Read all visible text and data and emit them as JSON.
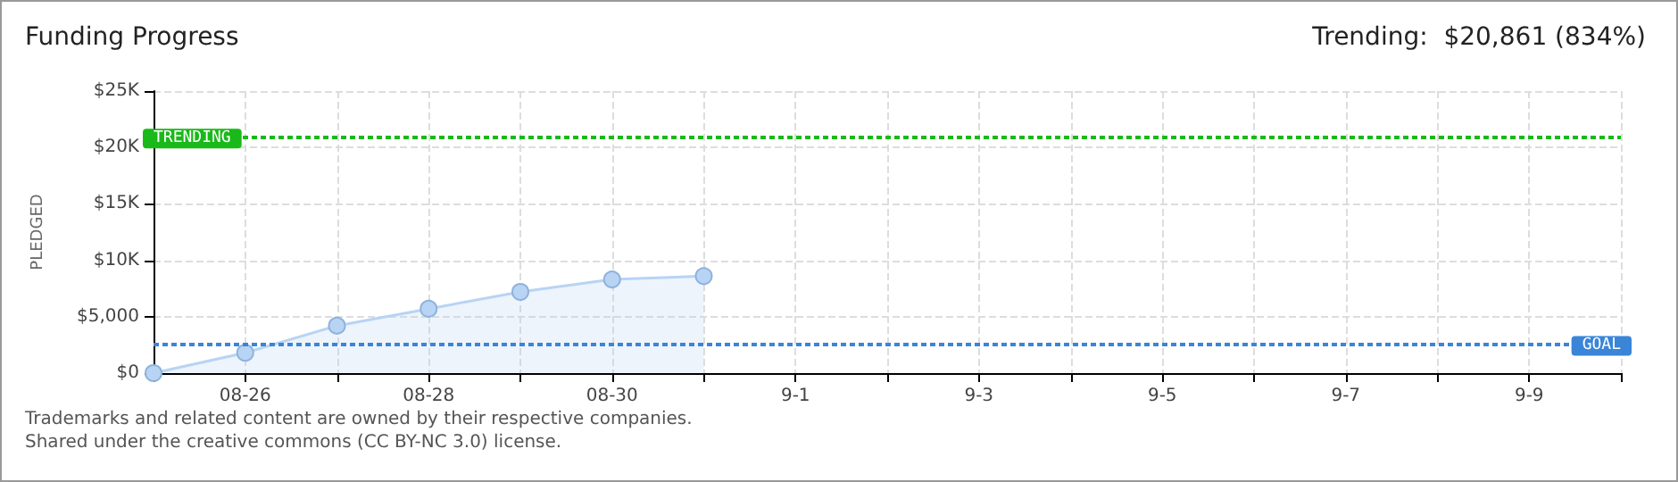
{
  "chart_data": {
    "type": "area",
    "title": "Funding Progress",
    "ylabel": "PLEDGED",
    "annotations": [
      "Trending:  $20,861 (834%)",
      "Trademarks and related content are owned by their respective companies.",
      "Shared under the creative commons (CC BY-NC 3.0) license."
    ],
    "categories": [
      null,
      "08-26",
      null,
      "08-28",
      null,
      "08-30",
      null,
      "9-1",
      null,
      "9-3",
      null,
      "9-5",
      null,
      "9-7",
      null,
      "9-9",
      null
    ],
    "values": [
      0,
      1800,
      4200,
      5700,
      7200,
      8300,
      8600,
      null,
      null,
      null,
      null,
      null,
      null,
      null,
      null,
      null,
      null
    ],
    "color": "#b8d4f4",
    "ylim": [
      0,
      25000
    ],
    "yticks": [
      {
        "value": 0,
        "label": "$0"
      },
      {
        "value": 5000,
        "label": "$5,000"
      },
      {
        "value": 10000,
        "label": "$10K"
      },
      {
        "value": 15000,
        "label": "$15K"
      },
      {
        "value": 20000,
        "label": "$20K"
      },
      {
        "value": 25000,
        "label": "$25K"
      }
    ],
    "ref_lines": [
      {
        "axis": "y",
        "value": 20861,
        "label": "TRENDING",
        "color": "#19b919",
        "line_style": "dotted"
      },
      {
        "axis": "y",
        "value": 2500,
        "label": "GOAL",
        "color": "#3a85d8",
        "line_style": "dotted"
      }
    ],
    "grid": true,
    "marker": "circle"
  }
}
